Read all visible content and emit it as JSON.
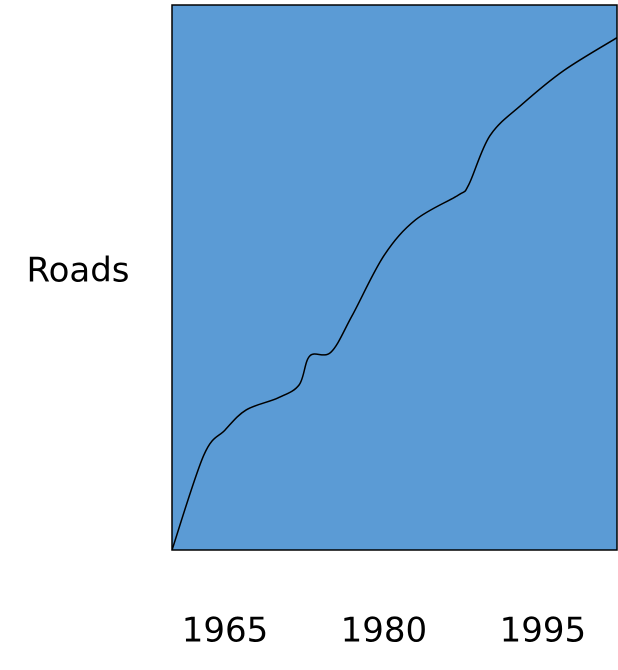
{
  "chart_data": {
    "type": "line",
    "y_label": "Roads",
    "x": [
      1960,
      1963,
      1965,
      1967,
      1970,
      1972,
      1973,
      1975,
      1977,
      1980,
      1983,
      1987,
      1988,
      1990,
      1993,
      1997,
      2002
    ],
    "values": [
      0,
      17.4,
      22,
      25.7,
      27.9,
      30.3,
      35.6,
      36.3,
      43,
      54,
      60.6,
      65.1,
      67,
      76,
      81.7,
      88,
      94
    ],
    "color": "#000000",
    "background": "#5b9bd5",
    "xlim": [
      1960,
      2002
    ],
    "xticks": [
      1965,
      1980,
      1995
    ],
    "ylim": [
      0,
      100
    ],
    "grid": false
  }
}
